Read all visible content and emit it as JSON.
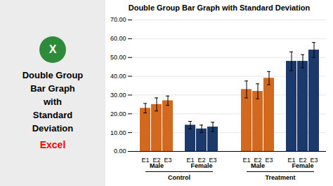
{
  "chart_data": {
    "type": "bar",
    "title": "Double Group Bar Graph with Standard Deviation",
    "categories": [
      "E1",
      "E2",
      "E3"
    ],
    "groups": [
      {
        "name": "Control",
        "series": [
          {
            "name": "Male",
            "color": "#D2691E",
            "values": [
              23,
              25,
              27
            ],
            "errors": [
              2.5,
              3.5,
              2.5
            ]
          },
          {
            "name": "Female",
            "color": "#1B3A6B",
            "values": [
              14,
              12,
              13
            ],
            "errors": [
              2.0,
              2.0,
              2.5
            ]
          }
        ]
      },
      {
        "name": "Treatment",
        "series": [
          {
            "name": "Male",
            "color": "#D2691E",
            "values": [
              33,
              32,
              39
            ],
            "errors": [
              4.5,
              4.0,
              3.5
            ]
          },
          {
            "name": "Female",
            "color": "#1B3A6B",
            "values": [
              48,
              48,
              54
            ],
            "errors": [
              5.0,
              3.5,
              4.0
            ]
          }
        ]
      }
    ],
    "ylim": [
      0,
      70
    ],
    "yticks": [
      {
        "value": 0,
        "label": "0.00"
      },
      {
        "value": 10,
        "label": "10.00"
      },
      {
        "value": 20,
        "label": "20.00"
      },
      {
        "value": 30,
        "label": "30.00"
      },
      {
        "value": 40,
        "label": "40.00"
      },
      {
        "value": 50,
        "label": "50.00"
      },
      {
        "value": 60,
        "label": "60.00"
      },
      {
        "value": 70,
        "label": "70.00"
      }
    ],
    "grid": true,
    "annotations": [
      "X",
      "Double Group",
      "Bar Graph",
      "with",
      "Standard",
      "Deviation",
      "Excel"
    ]
  }
}
